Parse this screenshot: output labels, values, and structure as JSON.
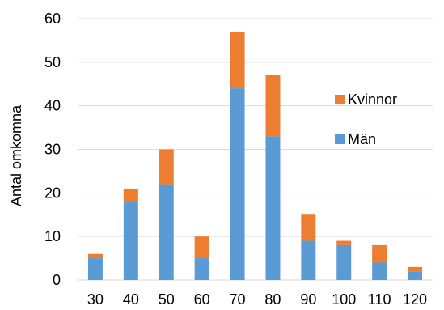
{
  "chart_data": {
    "type": "bar",
    "stacked": true,
    "categories": [
      "30",
      "40",
      "50",
      "60",
      "70",
      "80",
      "90",
      "100",
      "110",
      "120"
    ],
    "series": [
      {
        "name": "Män",
        "values": [
          5,
          18,
          22,
          5,
          44,
          33,
          9,
          8,
          4,
          2
        ],
        "color": "#5b9bd5"
      },
      {
        "name": "Kvinnor",
        "values": [
          1,
          3,
          8,
          5,
          13,
          14,
          6,
          1,
          4,
          1
        ],
        "color": "#ed7d31"
      }
    ],
    "title": "",
    "xlabel": "",
    "ylabel": "Antal omkomna",
    "ylim": [
      0,
      60
    ],
    "yticks": [
      0,
      10,
      20,
      30,
      40,
      50,
      60
    ],
    "grid": true,
    "legend_position": "right"
  }
}
